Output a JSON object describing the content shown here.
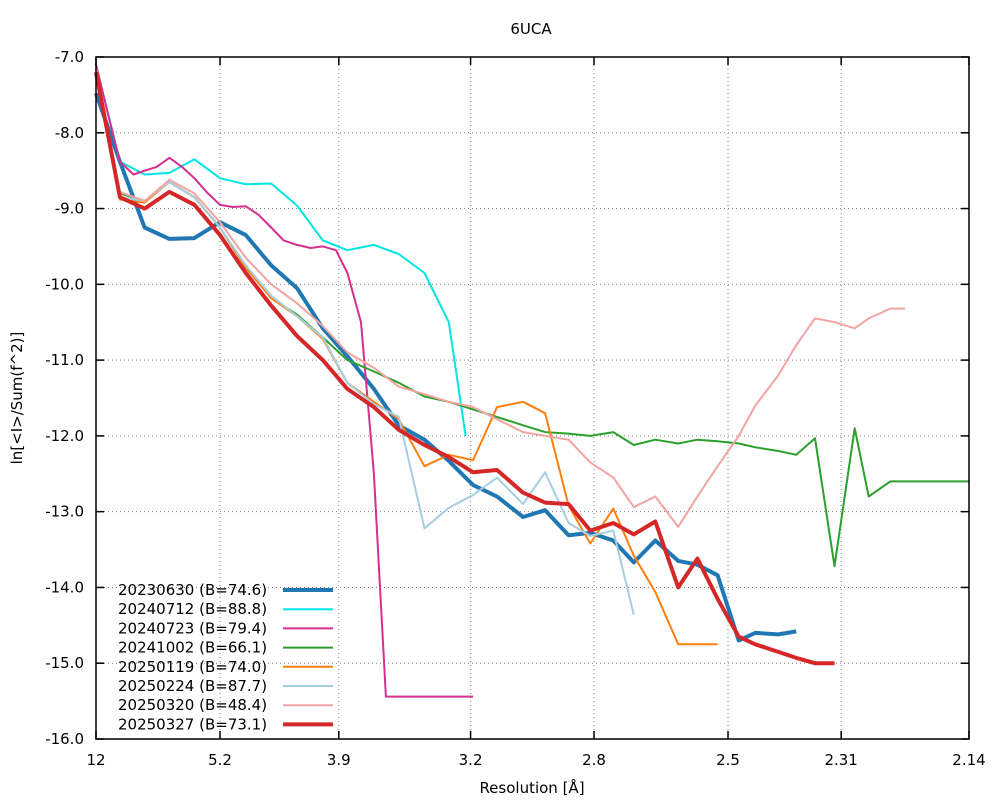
{
  "chart_data": {
    "type": "line",
    "title": "6UCA",
    "xlabel": "Resolution [Å]",
    "ylabel": "ln[<I>/Sum(f^2)]",
    "x_scale": "inverse-square-resolution",
    "xlim": [
      12,
      2.14
    ],
    "ylim": [
      -16.0,
      -7.0
    ],
    "grid": true,
    "legend_position": "bottom-left",
    "x_ticks": [
      {
        "value": 12,
        "label": "12"
      },
      {
        "value": 5.2,
        "label": "5.2"
      },
      {
        "value": 3.9,
        "label": "3.9"
      },
      {
        "value": 3.2,
        "label": "3.2"
      },
      {
        "value": 2.8,
        "label": "2.8"
      },
      {
        "value": 2.5,
        "label": "2.5"
      },
      {
        "value": 2.31,
        "label": "2.31"
      },
      {
        "value": 2.14,
        "label": "2.14"
      }
    ],
    "y_ticks": [
      {
        "value": -7.0,
        "label": "-7.0"
      },
      {
        "value": -8.0,
        "label": "-8.0"
      },
      {
        "value": -9.0,
        "label": "-9.0"
      },
      {
        "value": -10.0,
        "label": "-10.0"
      },
      {
        "value": -11.0,
        "label": "-11.0"
      },
      {
        "value": -12.0,
        "label": "-12.0"
      },
      {
        "value": -13.0,
        "label": "-13.0"
      },
      {
        "value": -14.0,
        "label": "-14.0"
      },
      {
        "value": -15.0,
        "label": "-15.0"
      },
      {
        "value": -16.0,
        "label": "-16.0"
      }
    ],
    "series": [
      {
        "name": "20230630 (B=74.6)",
        "color": "#1f77b4",
        "width": 4,
        "x": [
          12.0,
          8.86,
          7.31,
          6.36,
          5.7,
          5.2,
          4.81,
          4.5,
          4.24,
          4.02,
          3.84,
          3.67,
          3.53,
          3.4,
          3.29,
          3.19,
          3.1,
          3.01,
          2.94,
          2.87,
          2.81,
          2.75,
          2.7,
          2.65,
          2.6,
          2.56,
          2.52,
          2.48,
          2.45,
          2.41,
          2.38
        ],
        "y": [
          -7.48,
          -8.38,
          -9.25,
          -9.4,
          -9.39,
          -9.18,
          -9.35,
          -9.75,
          -10.05,
          -10.58,
          -10.95,
          -11.38,
          -11.86,
          -12.05,
          -12.33,
          -12.65,
          -12.8,
          -13.07,
          -12.98,
          -13.31,
          -13.28,
          -13.38,
          -13.67,
          -13.38,
          -13.65,
          -13.7,
          -13.84,
          -14.7,
          -14.6,
          -14.62,
          -14.58
        ],
        "x_display": [
          12.0,
          8.86,
          7.31,
          6.36,
          5.7,
          5.2,
          4.81,
          4.5,
          4.24,
          4.02,
          3.84,
          3.67,
          3.53,
          3.4,
          3.29,
          3.19,
          3.1,
          3.01,
          2.94,
          2.87,
          2.81,
          2.75,
          2.7,
          2.65,
          2.6,
          2.56,
          2.52,
          2.48,
          2.45,
          2.41,
          2.38
        ]
      },
      {
        "name": "20240712 (B=88.8)",
        "color": "#00e5e5",
        "width": 2,
        "x": [
          12.0,
          8.86,
          7.31,
          6.36,
          5.7,
          5.2,
          4.81,
          4.5,
          4.24,
          4.02,
          3.84,
          3.67,
          3.53,
          3.4,
          3.29,
          3.22
        ],
        "y": [
          -7.1,
          -8.38,
          -8.55,
          -8.53,
          -8.35,
          -8.6,
          -8.68,
          -8.67,
          -8.96,
          -9.42,
          -9.55,
          -9.48,
          -9.6,
          -9.85,
          -10.5,
          -12.0
        ]
      },
      {
        "name": "20240723 (B=79.4)",
        "color": "#d62f8f",
        "width": 2,
        "x": [
          12.0,
          10.2,
          8.86,
          7.9,
          7.31,
          6.8,
          6.36,
          6.0,
          5.7,
          5.42,
          5.2,
          5.0,
          4.81,
          4.65,
          4.5,
          4.37,
          4.24,
          4.12,
          4.02,
          3.92,
          3.84,
          3.75,
          3.67,
          3.6,
          3.53,
          3.46,
          3.4,
          3.34,
          3.29,
          3.24,
          3.19
        ],
        "y": [
          -7.1,
          -7.7,
          -8.38,
          -8.55,
          -8.5,
          -8.45,
          -8.33,
          -8.45,
          -8.6,
          -8.8,
          -8.95,
          -8.98,
          -8.97,
          -9.08,
          -9.25,
          -9.42,
          -9.48,
          -9.52,
          -9.5,
          -9.55,
          -9.85,
          -10.5,
          -12.5,
          -15.44,
          -15.44,
          -15.44,
          -15.44,
          -15.44,
          -15.44,
          -15.44,
          -15.44
        ]
      },
      {
        "name": "20241002 (B=66.1)",
        "color": "#2ca02c",
        "width": 2,
        "x": [
          12.0,
          8.86,
          7.31,
          6.36,
          5.7,
          5.2,
          4.81,
          4.5,
          4.24,
          4.02,
          3.84,
          3.67,
          3.53,
          3.4,
          3.29,
          3.19,
          3.1,
          3.01,
          2.94,
          2.87,
          2.81,
          2.75,
          2.7,
          2.65,
          2.6,
          2.56,
          2.52,
          2.48,
          2.45,
          2.41,
          2.38,
          2.35,
          2.32,
          2.29,
          2.27,
          2.24,
          2.22,
          2.19,
          2.17,
          2.14
        ],
        "y": [
          -7.15,
          -8.8,
          -8.9,
          -8.65,
          -8.85,
          -9.25,
          -9.78,
          -10.18,
          -10.4,
          -10.7,
          -11.0,
          -11.15,
          -11.3,
          -11.48,
          -11.55,
          -11.65,
          -11.75,
          -11.86,
          -11.95,
          -11.97,
          -12.0,
          -11.95,
          -12.12,
          -12.05,
          -12.1,
          -12.05,
          -12.07,
          -12.1,
          -12.15,
          -12.2,
          -12.25,
          -12.03,
          -13.72,
          -11.9,
          -12.8,
          -12.6,
          -12.6,
          -12.6,
          -12.6,
          -12.6
        ]
      },
      {
        "name": "20250119 (B=74.0)",
        "color": "#ff7f0e",
        "width": 2,
        "x": [
          12.0,
          8.86,
          7.31,
          6.36,
          5.7,
          5.2,
          4.81,
          4.5,
          4.24,
          4.02,
          3.84,
          3.67,
          3.53,
          3.4,
          3.29,
          3.19,
          3.1,
          3.01,
          2.94,
          2.87,
          2.81,
          2.75,
          2.7,
          2.65,
          2.6,
          2.56,
          2.52
        ],
        "y": [
          -7.15,
          -8.88,
          -8.92,
          -8.65,
          -8.85,
          -9.25,
          -9.78,
          -10.18,
          -10.42,
          -10.72,
          -11.3,
          -11.55,
          -11.78,
          -12.4,
          -12.25,
          -12.32,
          -11.62,
          -11.55,
          -11.7,
          -12.92,
          -13.42,
          -12.96,
          -13.58,
          -14.06,
          -14.75,
          -14.75,
          -14.75
        ]
      },
      {
        "name": "20250224 (B=87.7)",
        "color": "#a6cee3",
        "width": 2,
        "x": [
          12.0,
          8.86,
          7.31,
          6.36,
          5.7,
          5.2,
          4.81,
          4.5,
          4.24,
          4.02,
          3.84,
          3.67,
          3.53,
          3.4,
          3.29,
          3.19,
          3.1,
          3.01,
          2.94,
          2.87,
          2.81,
          2.75,
          2.7
        ],
        "y": [
          -7.15,
          -8.85,
          -8.9,
          -8.65,
          -8.85,
          -9.25,
          -9.75,
          -10.15,
          -10.42,
          -10.7,
          -11.3,
          -11.58,
          -11.75,
          -13.22,
          -12.95,
          -12.78,
          -12.55,
          -12.9,
          -12.48,
          -13.15,
          -13.32,
          -13.25,
          -14.36
        ]
      },
      {
        "name": "20250320 (B=48.4)",
        "color": "#f4a3a3",
        "width": 2,
        "x": [
          12.0,
          8.86,
          7.31,
          6.36,
          5.7,
          5.2,
          4.81,
          4.5,
          4.24,
          4.02,
          3.84,
          3.67,
          3.53,
          3.4,
          3.29,
          3.19,
          3.1,
          3.01,
          2.94,
          2.87,
          2.81,
          2.75,
          2.7,
          2.65,
          2.6,
          2.56,
          2.52,
          2.48,
          2.45,
          2.41,
          2.38,
          2.35,
          2.32,
          2.29,
          2.27,
          2.24,
          2.22
        ],
        "y": [
          -7.15,
          -8.78,
          -8.9,
          -8.62,
          -8.8,
          -9.18,
          -9.65,
          -10.0,
          -10.25,
          -10.55,
          -10.9,
          -11.1,
          -11.35,
          -11.45,
          -11.55,
          -11.62,
          -11.78,
          -11.95,
          -12.0,
          -12.05,
          -12.35,
          -12.55,
          -12.94,
          -12.8,
          -13.2,
          -12.8,
          -12.4,
          -12.0,
          -11.6,
          -11.2,
          -10.8,
          -10.45,
          -10.5,
          -10.58,
          -10.45,
          -10.32,
          -10.32
        ]
      },
      {
        "name": "20250327 (B=73.1)",
        "color": "#d62728",
        "width": 4,
        "x": [
          12.0,
          8.86,
          7.31,
          6.36,
          5.7,
          5.2,
          4.81,
          4.5,
          4.24,
          4.02,
          3.84,
          3.67,
          3.53,
          3.4,
          3.29,
          3.19,
          3.1,
          3.01,
          2.94,
          2.87,
          2.81,
          2.75,
          2.7,
          2.65,
          2.6,
          2.56,
          2.52,
          2.48,
          2.45,
          2.41,
          2.38,
          2.35,
          2.32
        ],
        "y": [
          -7.2,
          -8.85,
          -9.0,
          -8.78,
          -8.95,
          -9.35,
          -9.85,
          -10.28,
          -10.68,
          -11.0,
          -11.38,
          -11.62,
          -11.92,
          -12.12,
          -12.28,
          -12.48,
          -12.45,
          -12.75,
          -12.88,
          -12.9,
          -13.25,
          -13.15,
          -13.3,
          -13.13,
          -14.0,
          -13.62,
          -14.15,
          -14.65,
          -14.75,
          -14.85,
          -14.93,
          -15.0,
          -15.0
        ]
      }
    ]
  }
}
